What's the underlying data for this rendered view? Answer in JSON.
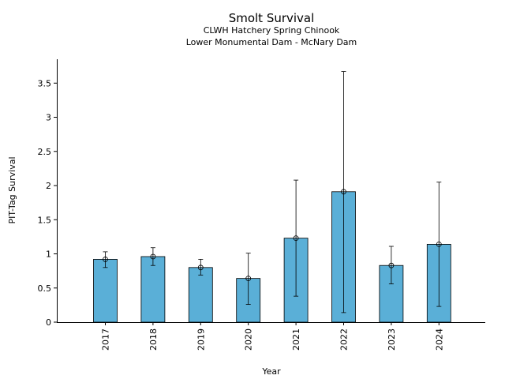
{
  "chart_data": {
    "type": "bar",
    "title": "Smolt Survival",
    "subtitle_lines": [
      "CLWH Hatchery Spring Chinook",
      "Lower Monumental Dam - McNary Dam"
    ],
    "xlabel": "Year",
    "ylabel": "PIT-Tag Survival",
    "categories": [
      "2017",
      "2018",
      "2019",
      "2020",
      "2021",
      "2022",
      "2023",
      "2024"
    ],
    "values": [
      0.92,
      0.96,
      0.8,
      0.64,
      1.23,
      1.91,
      0.83,
      1.14
    ],
    "error_low": [
      0.8,
      0.83,
      0.69,
      0.26,
      0.38,
      0.14,
      0.56,
      0.23
    ],
    "error_high": [
      1.03,
      1.09,
      0.92,
      1.01,
      2.08,
      3.67,
      1.11,
      2.05
    ],
    "yticks": [
      0,
      0.5,
      1,
      1.5,
      2,
      2.5,
      3,
      3.5
    ],
    "ytick_labels": [
      "0",
      "0.5",
      "1",
      "1.5",
      "2",
      "2.5",
      "3",
      "3.5"
    ],
    "ylim": [
      0,
      3.85
    ],
    "grid": false,
    "colors": {
      "bar_fill": "#5aafd7",
      "bar_stroke": "#000000",
      "error": "#000000"
    }
  }
}
